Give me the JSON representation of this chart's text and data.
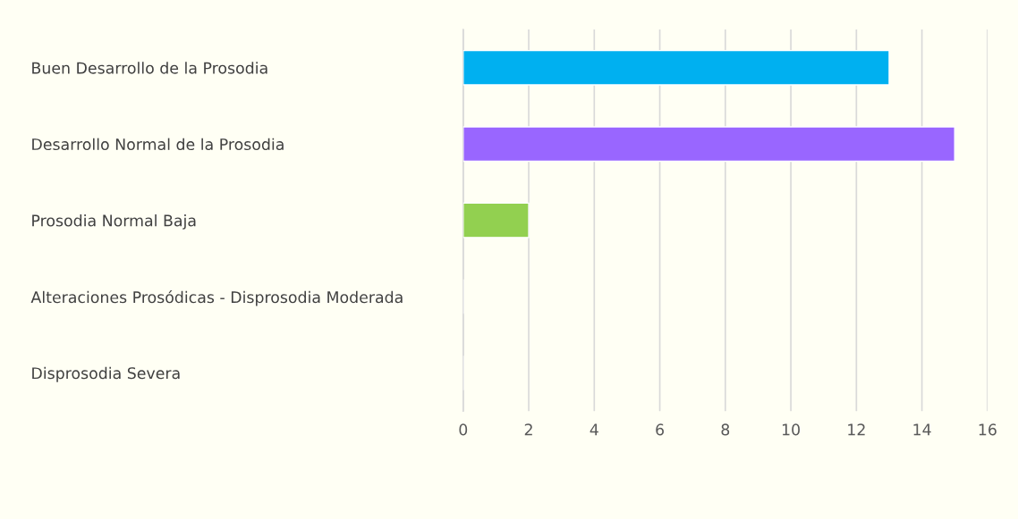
{
  "chart_data": {
    "type": "bar",
    "orientation": "horizontal",
    "categories": [
      "Buen Desarrollo de la Prosodia",
      "Desarrollo Normal de la Prosodia",
      "Prosodia Normal Baja",
      "Alteraciones Prosódicas - Disprosodia Moderada",
      "Disprosodia Severa"
    ],
    "values": [
      13,
      15,
      2,
      0,
      0
    ],
    "colors": [
      "#00b0f0",
      "#9966ff",
      "#92d050",
      null,
      null
    ],
    "xlim": [
      0,
      16
    ],
    "xticks": [
      0,
      2,
      4,
      6,
      8,
      10,
      12,
      14,
      16
    ],
    "grid": "x"
  }
}
